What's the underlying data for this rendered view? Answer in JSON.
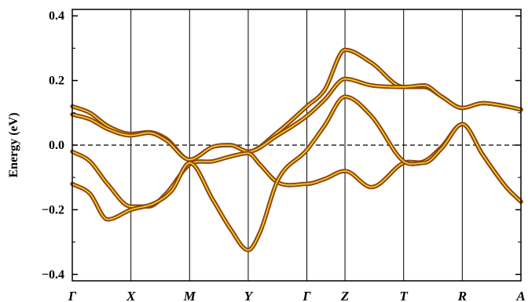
{
  "chart_data": {
    "type": "line",
    "title": "",
    "xlabel": "",
    "ylabel": "Energy (eV)",
    "ylim": [
      -0.42,
      0.42
    ],
    "yticks": [
      -0.4,
      -0.2,
      0.0,
      0.2,
      0.4
    ],
    "ytick_labels": [
      "−0.4",
      "−0.2",
      "0.0",
      "0.2",
      "0.4"
    ],
    "kpoints": [
      {
        "label": "Γ",
        "x": 0
      },
      {
        "label": "X",
        "x": 1
      },
      {
        "label": "M",
        "x": 2
      },
      {
        "label": "Y",
        "x": 3
      },
      {
        "label": "Γ",
        "x": 4
      },
      {
        "label": "Z",
        "x": 4.65
      },
      {
        "label": "T",
        "x": 5.65
      },
      {
        "label": "R",
        "x": 6.65
      },
      {
        "label": "A",
        "x": 7.65
      }
    ],
    "xlim": [
      0,
      7.65
    ],
    "fermi_level": 0.0,
    "grid": false,
    "colors": {
      "band_outer": "#8b4513",
      "band_inner": "#ffd21f",
      "fermi_line": "#000000",
      "kpath_line": "#000000"
    },
    "series": [
      {
        "x": [
          0,
          0.3,
          0.6,
          1,
          1.3,
          1.6,
          2,
          2.4,
          2.7,
          3,
          3.5,
          4,
          4.3,
          4.65,
          5.1,
          5.65,
          6,
          6.3,
          6.65,
          7,
          7.4,
          7.65
        ],
        "values": [
          0.12,
          0.1,
          0.06,
          0.035,
          0.04,
          0.02,
          -0.045,
          -0.005,
          0.0,
          -0.02,
          0.04,
          0.12,
          0.17,
          0.295,
          0.255,
          0.18,
          0.18,
          0.15,
          0.115,
          0.13,
          0.12,
          0.11
        ]
      },
      {
        "x": [
          0,
          0.3,
          0.6,
          1,
          1.3,
          1.6,
          2,
          2.4,
          2.7,
          3,
          3.5,
          4,
          4.3,
          4.65,
          5.1,
          5.65,
          6,
          6.3,
          6.65,
          7,
          7.4,
          7.65
        ],
        "values": [
          0.095,
          0.08,
          0.05,
          0.03,
          0.038,
          0.015,
          -0.045,
          -0.005,
          0.0,
          -0.02,
          0.03,
          0.09,
          0.14,
          0.205,
          0.185,
          0.18,
          0.185,
          0.15,
          0.115,
          0.13,
          0.12,
          0.11
        ]
      },
      {
        "x": [
          0,
          0.3,
          0.6,
          1,
          1.3,
          1.6,
          2,
          2.4,
          2.7,
          3,
          3.2,
          3.5,
          4,
          4.3,
          4.65,
          5.1,
          5.65,
          6,
          6.3,
          6.65,
          7,
          7.4,
          7.65
        ],
        "values": [
          -0.02,
          -0.05,
          -0.12,
          -0.19,
          -0.19,
          -0.15,
          -0.06,
          -0.05,
          -0.035,
          -0.025,
          -0.06,
          -0.115,
          -0.12,
          -0.105,
          -0.08,
          -0.13,
          -0.055,
          -0.05,
          -0.005,
          0.065,
          -0.03,
          -0.13,
          -0.175
        ]
      },
      {
        "x": [
          0,
          0.3,
          0.6,
          1,
          1.4,
          1.7,
          2,
          2.4,
          2.7,
          3,
          3.2,
          3.5,
          4,
          4.3,
          4.65,
          5.1,
          5.65,
          6,
          6.3,
          6.65,
          7,
          7.4,
          7.65
        ],
        "values": [
          -0.12,
          -0.15,
          -0.23,
          -0.2,
          -0.18,
          -0.14,
          -0.055,
          -0.17,
          -0.26,
          -0.325,
          -0.27,
          -0.11,
          -0.015,
          0.06,
          0.15,
          0.09,
          -0.05,
          -0.055,
          -0.01,
          0.065,
          -0.03,
          -0.13,
          -0.175
        ]
      }
    ]
  }
}
